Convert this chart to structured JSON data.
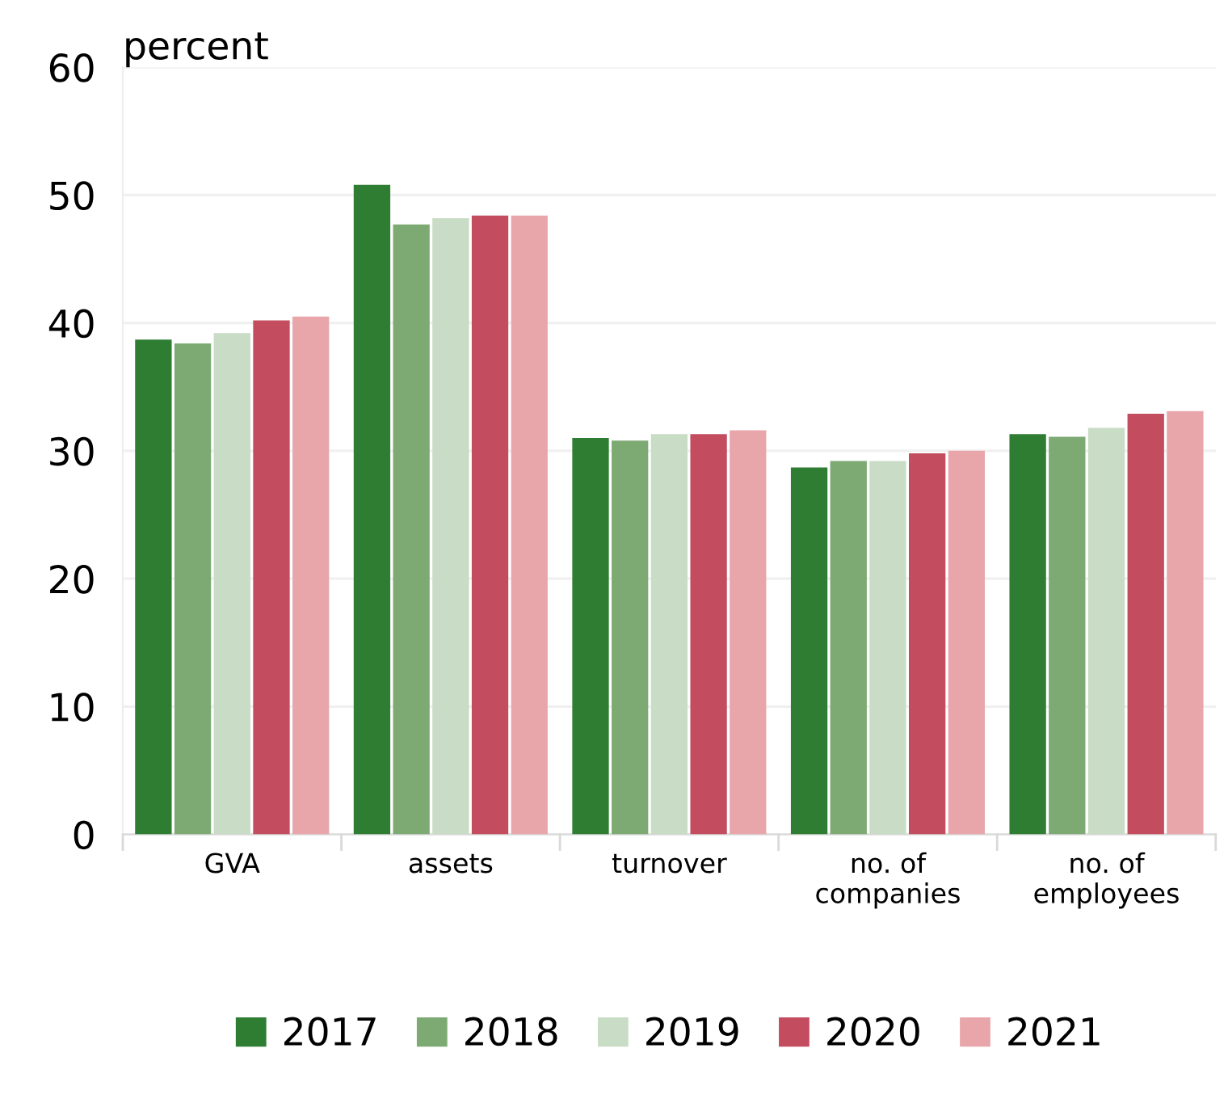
{
  "chart_data": {
    "type": "bar",
    "ylabel": "percent",
    "categories": [
      "GVA",
      "assets",
      "turnover",
      "no. of\ncompanies",
      "no. of\nemployees"
    ],
    "series": [
      {
        "name": "2017",
        "color": "#2e7d32",
        "values": [
          38.7,
          50.8,
          31.0,
          28.7,
          31.3
        ]
      },
      {
        "name": "2018",
        "color": "#7daa72",
        "values": [
          38.4,
          47.7,
          30.8,
          29.2,
          31.1
        ]
      },
      {
        "name": "2019",
        "color": "#c9dcc5",
        "values": [
          39.2,
          48.2,
          31.3,
          29.2,
          31.8
        ]
      },
      {
        "name": "2020",
        "color": "#c44c5f",
        "values": [
          40.2,
          48.4,
          31.3,
          29.8,
          32.9
        ]
      },
      {
        "name": "2021",
        "color": "#e8a6ab",
        "values": [
          40.5,
          48.4,
          31.6,
          30.0,
          33.1
        ]
      }
    ],
    "ylim": [
      0,
      60
    ],
    "yticks": [
      0,
      10,
      20,
      30,
      40,
      50,
      60
    ],
    "grid": "y",
    "legend": "bottom"
  }
}
